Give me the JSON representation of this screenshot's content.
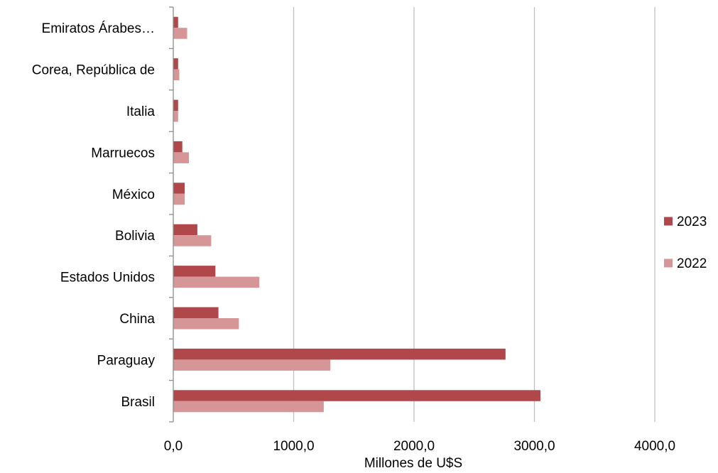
{
  "chart_data": {
    "type": "bar",
    "orientation": "horizontal",
    "title": "",
    "xlabel": "Millones de U$S",
    "ylabel": "",
    "xlim": [
      0,
      4000
    ],
    "x_ticks": [
      0,
      1000,
      2000,
      3000,
      4000
    ],
    "x_tick_labels": [
      "0,0",
      "1000,0",
      "2000,0",
      "3000,0",
      "4000,0"
    ],
    "grid": "vertical",
    "legend_position": "right",
    "categories": [
      "Brasil",
      "Paraguay",
      "China",
      "Estados Unidos",
      "Bolivia",
      "México",
      "Marruecos",
      "Italia",
      "Corea, República de",
      "Emiratos Árabes…"
    ],
    "series": [
      {
        "name": "2023",
        "color": "#b0474a",
        "values": [
          3050,
          2760,
          375,
          350,
          200,
          95,
          75,
          40,
          40,
          40
        ]
      },
      {
        "name": "2022",
        "color": "#d69597",
        "values": [
          1250,
          1305,
          545,
          715,
          315,
          95,
          130,
          40,
          50,
          115
        ]
      }
    ],
    "legend_order": [
      "2023",
      "2022"
    ]
  }
}
